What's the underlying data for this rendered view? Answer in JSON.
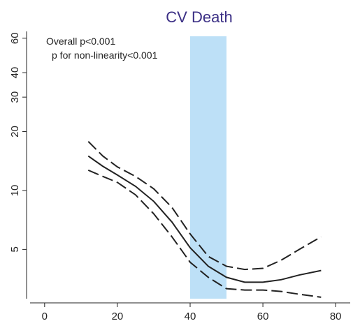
{
  "chart_data": {
    "type": "line",
    "title": "CV Death",
    "annotations": [
      "Overall p<0.001",
      "p for non-linearity<0.001"
    ],
    "x": [
      12,
      16,
      20,
      25,
      30,
      35,
      40,
      45,
      50,
      55,
      60,
      65,
      70,
      76
    ],
    "series": [
      {
        "color": "#222222",
        "style": "solid",
        "values": [
          15.0,
          13.3,
          12.0,
          10.5,
          8.8,
          6.9,
          5.1,
          4.1,
          3.6,
          3.4,
          3.4,
          3.5,
          3.7,
          3.9
        ]
      },
      {
        "color": "#222222",
        "style": "dashed",
        "values": [
          17.8,
          15.0,
          13.2,
          11.8,
          10.2,
          8.2,
          6.0,
          4.6,
          4.1,
          3.95,
          4.0,
          4.4,
          5.0,
          5.8
        ]
      },
      {
        "color": "#222222",
        "style": "dashed",
        "values": [
          12.7,
          11.8,
          11.0,
          9.5,
          7.6,
          5.8,
          4.3,
          3.6,
          3.15,
          3.1,
          3.1,
          3.05,
          2.95,
          2.85
        ]
      }
    ],
    "shaded_region": [
      40,
      50
    ],
    "shaded_color": "#bde0f7",
    "xlim": [
      -4,
      84
    ],
    "xticks": [
      0,
      20,
      40,
      60,
      80
    ],
    "ylim": [
      2.8,
      65
    ],
    "yticks": [
      5,
      10,
      20,
      30,
      40,
      60
    ],
    "ylog": true,
    "grid": false
  }
}
